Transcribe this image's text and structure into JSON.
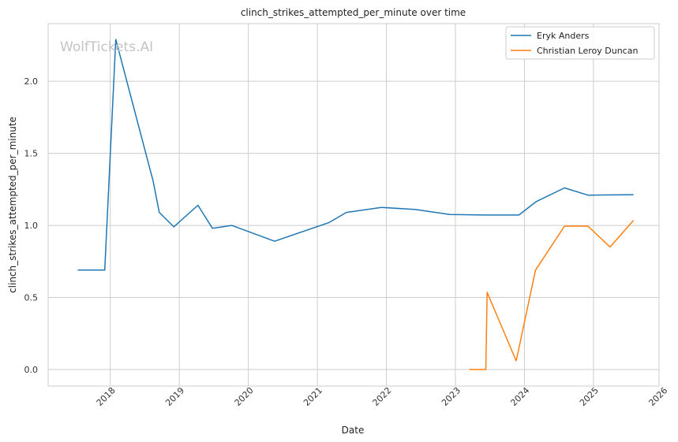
{
  "chart_data": {
    "type": "line",
    "title": "clinch_strikes_attempted_per_minute over time",
    "xlabel": "Date",
    "ylabel": "clinch_strikes_attempted_per_minute",
    "watermark": "WolfTickets.AI",
    "xlim": [
      2017.1,
      2025.95
    ],
    "ylim": [
      -0.115,
      2.4
    ],
    "x_ticks": [
      2018,
      2019,
      2020,
      2021,
      2022,
      2023,
      2024,
      2025,
      2026
    ],
    "x_tick_labels": [
      "2018",
      "2019",
      "2020",
      "2021",
      "2022",
      "2023",
      "2024",
      "2025",
      "2026"
    ],
    "y_ticks": [
      0.0,
      0.5,
      1.0,
      1.5,
      2.0
    ],
    "y_tick_labels": [
      "0.0",
      "0.5",
      "1.0",
      "1.5",
      "2.0"
    ],
    "grid": true,
    "legend_position": "top-right",
    "series": [
      {
        "name": "Eryk Anders",
        "color": "#1f77b4",
        "x": [
          2017.53,
          2017.92,
          2018.08,
          2018.62,
          2018.71,
          2018.92,
          2019.27,
          2019.48,
          2019.76,
          2020.38,
          2021.17,
          2021.42,
          2021.93,
          2022.42,
          2022.92,
          2023.42,
          2023.92,
          2024.17,
          2024.58,
          2024.92,
          2025.58
        ],
        "y": [
          0.69,
          0.69,
          2.29,
          1.31,
          1.09,
          0.99,
          1.14,
          0.98,
          1.0,
          0.89,
          1.02,
          1.09,
          1.125,
          1.11,
          1.075,
          1.072,
          1.072,
          1.165,
          1.26,
          1.21,
          1.213
        ]
      },
      {
        "name": "Christian Leroy Duncan",
        "color": "#ff7f0e",
        "x": [
          2023.2,
          2023.44,
          2023.46,
          2023.88,
          2024.16,
          2024.58,
          2024.92,
          2025.24,
          2025.58
        ],
        "y": [
          0.0,
          0.0,
          0.535,
          0.06,
          0.69,
          0.995,
          0.995,
          0.85,
          1.035
        ]
      }
    ]
  }
}
